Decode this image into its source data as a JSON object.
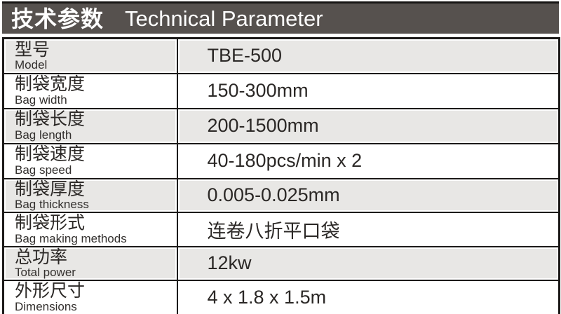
{
  "header": {
    "title_zh": "技术参数",
    "title_en": "Technical Parameter"
  },
  "table": {
    "rows": [
      {
        "label_zh": "型号",
        "label_en": "Model",
        "value": "TBE-500"
      },
      {
        "label_zh": "制袋宽度",
        "label_en": "Bag width",
        "value": "150-300mm"
      },
      {
        "label_zh": "制袋长度",
        "label_en": "Bag length",
        "value": "200-1500mm"
      },
      {
        "label_zh": "制袋速度",
        "label_en": "Bag speed",
        "value": "40-180pcs/min x 2"
      },
      {
        "label_zh": "制袋厚度",
        "label_en": "Bag thickness",
        "value": "0.005-0.025mm"
      },
      {
        "label_zh": "制袋形式",
        "label_en": "Bag making methods",
        "value": "连卷八折平口袋"
      },
      {
        "label_zh": "总功率",
        "label_en": "Total power",
        "value": "12kw"
      },
      {
        "label_zh": "外形尺寸",
        "label_en": "Dimensions",
        "value": "4 x 1.8 x 1.5m"
      }
    ]
  },
  "colors": {
    "header_bg": "#56514e",
    "header_text": "#ffffff",
    "border": "#1c1a19",
    "row_alt_bg": "#e8e7e5",
    "row_bg": "#ffffff",
    "text": "#2b2826"
  }
}
